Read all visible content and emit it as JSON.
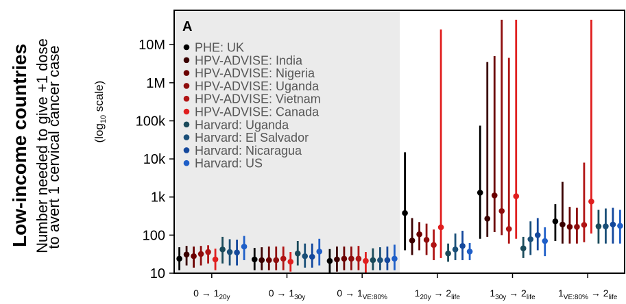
{
  "side_title": "Low-income countries",
  "chart_data": {
    "type": "scatter",
    "panel_label": "A",
    "ylabel_line1": "Number needed to give +1 dose",
    "ylabel_line2": "to avert 1 cervical cancer case",
    "ylabel_scale": "(log",
    "ylabel_scale_sub": "10",
    "ylabel_scale_end": " scale)",
    "yscale": "log",
    "ylim": [
      10,
      80000000
    ],
    "yticks": [
      {
        "value": 10,
        "label": "10"
      },
      {
        "value": 100,
        "label": "100"
      },
      {
        "value": 1000,
        "label": "1k"
      },
      {
        "value": 10000,
        "label": "10k"
      },
      {
        "value": 100000,
        "label": "100k"
      },
      {
        "value": 1000000,
        "label": "1M"
      },
      {
        "value": 10000000,
        "label": "10M"
      }
    ],
    "categories": [
      {
        "main": "0 → 1",
        "sub": "20y"
      },
      {
        "main": "0 → 1",
        "sub": "30y"
      },
      {
        "main": "0 → 1",
        "sub": "VE:80%"
      },
      {
        "main": "1",
        "sub": "20y",
        "main2": " → 2",
        "sub2": "life"
      },
      {
        "main": "1",
        "sub": "30y",
        "main2": " → 2",
        "sub2": "life"
      },
      {
        "main": "1",
        "sub": "VE:80%",
        "main2": " → 2",
        "sub2": "life"
      }
    ],
    "shaded_categories": [
      0,
      1,
      2
    ],
    "colors": {
      "shade": "#ebebeb"
    },
    "legend_placement": "top-left",
    "series": [
      {
        "name": "PHE: UK",
        "color": "#000000",
        "points": [
          {
            "y": 24,
            "lo": 12,
            "hi": 48
          },
          {
            "y": 23,
            "lo": 12,
            "hi": 46
          },
          {
            "y": 21,
            "lo": 10,
            "hi": 43
          },
          {
            "y": 380,
            "lo": 40,
            "hi": 15000
          },
          {
            "y": 1300,
            "lo": 80,
            "hi": 75000
          },
          {
            "y": 230,
            "lo": 70,
            "hi": 650
          }
        ]
      },
      {
        "name": "HPV-ADVISE: India",
        "color": "#3a0000",
        "points": [
          {
            "y": 31,
            "lo": 16,
            "hi": 52
          },
          {
            "y": 22,
            "lo": 12,
            "hi": 48
          },
          {
            "y": 23,
            "lo": 11,
            "hi": 50
          },
          {
            "y": 72,
            "lo": 30,
            "hi": 280
          },
          {
            "y": 270,
            "lo": 90,
            "hi": 3500000
          },
          {
            "y": 190,
            "lo": 60,
            "hi": 2500
          }
        ]
      },
      {
        "name": "HPV-ADVISE: Nigeria",
        "color": "#6b0000",
        "points": [
          {
            "y": 28,
            "lo": 14,
            "hi": 50
          },
          {
            "y": 22,
            "lo": 12,
            "hi": 50
          },
          {
            "y": 24,
            "lo": 12,
            "hi": 50
          },
          {
            "y": 105,
            "lo": 40,
            "hi": 220
          },
          {
            "y": 1100,
            "lo": 120,
            "hi": 5000000
          },
          {
            "y": 165,
            "lo": 60,
            "hi": 550
          }
        ]
      },
      {
        "name": "HPV-ADVISE: Uganda",
        "color": "#8e0d0d",
        "points": [
          {
            "y": 32,
            "lo": 16,
            "hi": 52
          },
          {
            "y": 22,
            "lo": 12,
            "hi": 50
          },
          {
            "y": 24,
            "lo": 12,
            "hi": 50
          },
          {
            "y": 75,
            "lo": 30,
            "hi": 200
          },
          {
            "y": 430,
            "lo": 100,
            "hi": 45000000
          },
          {
            "y": 165,
            "lo": 60,
            "hi": 520
          }
        ]
      },
      {
        "name": "HPV-ADVISE: Vietnam",
        "color": "#b01414",
        "points": [
          {
            "y": 36,
            "lo": 18,
            "hi": 54
          },
          {
            "y": 24,
            "lo": 12,
            "hi": 50
          },
          {
            "y": 24,
            "lo": 12,
            "hi": 52
          },
          {
            "y": 55,
            "lo": 22,
            "hi": 140
          },
          {
            "y": 145,
            "lo": 60,
            "hi": 4500000
          },
          {
            "y": 185,
            "lo": 65,
            "hi": 8000
          }
        ]
      },
      {
        "name": "HPV-ADVISE: Canada",
        "color": "#e01e1e",
        "points": [
          {
            "y": 23,
            "lo": 12,
            "hi": 44
          },
          {
            "y": 20,
            "lo": 11,
            "hi": 36
          },
          {
            "y": 21,
            "lo": 10,
            "hi": 36
          },
          {
            "y": 160,
            "lo": 25,
            "hi": 25000000
          },
          {
            "y": 1050,
            "lo": 80,
            "hi": 45000000
          },
          {
            "y": 760,
            "lo": 110,
            "hi": 45000000
          }
        ]
      },
      {
        "name": "Harvard: Uganda",
        "color": "#1a4a5a",
        "points": [
          {
            "y": 42,
            "lo": 18,
            "hi": 90
          },
          {
            "y": 33,
            "lo": 16,
            "hi": 70
          },
          {
            "y": 22,
            "lo": 12,
            "hi": 45
          },
          {
            "y": 33,
            "lo": 20,
            "hi": 60
          },
          {
            "y": 45,
            "lo": 25,
            "hi": 90
          },
          {
            "y": 170,
            "lo": 60,
            "hi": 460
          }
        ]
      },
      {
        "name": "Harvard: El Salvador",
        "color": "#1a4f78",
        "points": [
          {
            "y": 36,
            "lo": 16,
            "hi": 78
          },
          {
            "y": 28,
            "lo": 14,
            "hi": 60
          },
          {
            "y": 22,
            "lo": 12,
            "hi": 48
          },
          {
            "y": 42,
            "lo": 22,
            "hi": 110
          },
          {
            "y": 78,
            "lo": 30,
            "hi": 230
          },
          {
            "y": 170,
            "lo": 60,
            "hi": 500
          }
        ]
      },
      {
        "name": "Harvard: Nicaragua",
        "color": "#14489c",
        "points": [
          {
            "y": 35,
            "lo": 16,
            "hi": 76
          },
          {
            "y": 27,
            "lo": 14,
            "hi": 60
          },
          {
            "y": 22,
            "lo": 12,
            "hi": 50
          },
          {
            "y": 52,
            "lo": 22,
            "hi": 130
          },
          {
            "y": 100,
            "lo": 40,
            "hi": 280
          },
          {
            "y": 190,
            "lo": 60,
            "hi": 520
          }
        ]
      },
      {
        "name": "Harvard: US",
        "color": "#1f5fc8",
        "points": [
          {
            "y": 50,
            "lo": 22,
            "hi": 95
          },
          {
            "y": 37,
            "lo": 16,
            "hi": 80
          },
          {
            "y": 24,
            "lo": 12,
            "hi": 56
          },
          {
            "y": 37,
            "lo": 22,
            "hi": 62
          },
          {
            "y": 70,
            "lo": 28,
            "hi": 160
          },
          {
            "y": 175,
            "lo": 60,
            "hi": 460
          }
        ]
      }
    ]
  }
}
